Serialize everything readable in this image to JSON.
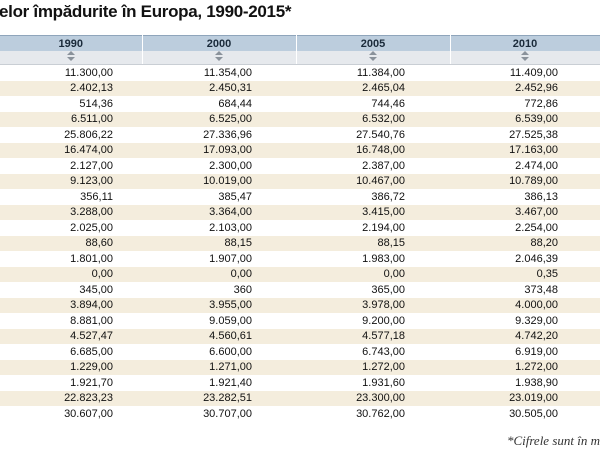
{
  "header": {
    "title": "elor împădurite în Europa, 1990-2015*"
  },
  "table": {
    "columns": [
      "1990",
      "2000",
      "2005",
      "2010"
    ],
    "rows": [
      [
        "11.300,00",
        "11.354,00",
        "11.384,00",
        "11.409,00"
      ],
      [
        "2.402,13",
        "2.450,31",
        "2.465,04",
        "2.452,96"
      ],
      [
        "514,36",
        "684,44",
        "744,46",
        "772,86"
      ],
      [
        "6.511,00",
        "6.525,00",
        "6.532,00",
        "6.539,00"
      ],
      [
        "25.806,22",
        "27.336,96",
        "27.540,76",
        "27.525,38"
      ],
      [
        "16.474,00",
        "17.093,00",
        "16.748,00",
        "17.163,00"
      ],
      [
        "2.127,00",
        "2.300,00",
        "2.387,00",
        "2.474,00"
      ],
      [
        "9.123,00",
        "10.019,00",
        "10.467,00",
        "10.789,00"
      ],
      [
        "356,11",
        "385,47",
        "386,72",
        "386,13"
      ],
      [
        "3.288,00",
        "3.364,00",
        "3.415,00",
        "3.467,00"
      ],
      [
        "2.025,00",
        "2.103,00",
        "2.194,00",
        "2.254,00"
      ],
      [
        "88,60",
        "88,15",
        "88,15",
        "88,20"
      ],
      [
        "1.801,00",
        "1.907,00",
        "1.983,00",
        "2.046,39"
      ],
      [
        "0,00",
        "0,00",
        "0,00",
        "0,35"
      ],
      [
        "345,00",
        "360",
        "365,00",
        "373,48"
      ],
      [
        "3.894,00",
        "3.955,00",
        "3.978,00",
        "4.000,00"
      ],
      [
        "8.881,00",
        "9.059,00",
        "9.200,00",
        "9.329,00"
      ],
      [
        "4.527,47",
        "4.560,61",
        "4.577,18",
        "4.742,20"
      ],
      [
        "6.685,00",
        "6.600,00",
        "6.743,00",
        "6.919,00"
      ],
      [
        "1.229,00",
        "1.271,00",
        "1.272,00",
        "1.272,00"
      ],
      [
        "1.921,70",
        "1.921,40",
        "1.931,60",
        "1.938,90"
      ],
      [
        "22.823,23",
        "23.282,51",
        "23.300,00",
        "23.019,00"
      ],
      [
        "30.607,00",
        "30.707,00",
        "30.762,00",
        "30.505,00"
      ]
    ]
  },
  "footnote": "*Cifrele sunt în m"
}
